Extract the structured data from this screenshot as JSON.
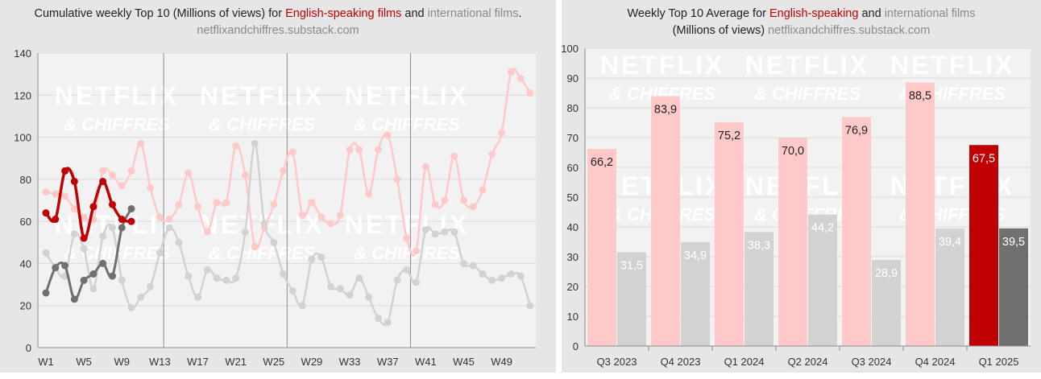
{
  "left": {
    "title_prefix": "Cumulative weekly Top 10 (Millions of views) for ",
    "title_red": "English-speaking films",
    "title_and": " and ",
    "title_grey": "international films",
    "title_end": ".",
    "source": "netflixandchiffres.substack.com"
  },
  "right": {
    "title_prefix": "Weekly Top 10 Average for ",
    "title_red": "English-speaking",
    "title_and": " and ",
    "title_grey": "international films",
    "title_line2": "(Millions of views)",
    "source": "netflixandchiffres.substack.com"
  },
  "watermark": {
    "line1": "NETFLIX",
    "line2": "& CHIFFRES"
  },
  "colors": {
    "english_current": "#c00000",
    "international_current": "#707070",
    "english_past": "#ffc9c9",
    "international_past": "#d2d2d2",
    "plot_bg": "#f2f2f2"
  },
  "chart_data": [
    {
      "type": "line",
      "x_tick_labels": [
        "W1",
        "W5",
        "W9",
        "W13",
        "W17",
        "W21",
        "W25",
        "W29",
        "W33",
        "W37",
        "W41",
        "W45",
        "W49"
      ],
      "ylim": [
        0,
        140
      ],
      "y_ticks": [
        0,
        20,
        40,
        60,
        80,
        100,
        120,
        140
      ],
      "grid": true,
      "series": [
        {
          "role": "english_past",
          "x": [
            1,
            2,
            3,
            4,
            5,
            6,
            7,
            8,
            9,
            10,
            11,
            12,
            13,
            14,
            15,
            16,
            17,
            18,
            19,
            20,
            21,
            22,
            23,
            24,
            25,
            26,
            27,
            28,
            29,
            30,
            31,
            32,
            33,
            34,
            35,
            36,
            37,
            38,
            39,
            40,
            41,
            42,
            43,
            44,
            45,
            46,
            47,
            48,
            49,
            50,
            51,
            52
          ],
          "values": [
            74,
            73,
            72,
            66,
            62,
            61,
            84,
            82,
            77,
            84,
            97,
            76,
            62,
            61,
            68,
            83,
            67,
            55,
            69,
            69,
            96,
            82,
            48,
            57,
            68,
            84,
            93,
            63,
            69,
            62,
            59,
            63,
            94,
            94,
            73,
            94,
            101,
            80,
            52,
            46,
            86,
            68,
            70,
            91,
            70,
            67,
            75,
            92,
            102,
            131,
            128,
            121
          ]
        },
        {
          "role": "international_past",
          "x": [
            1,
            2,
            3,
            4,
            5,
            6,
            7,
            8,
            9,
            10,
            11,
            12,
            13,
            14,
            15,
            16,
            17,
            18,
            19,
            20,
            21,
            22,
            23,
            24,
            25,
            26,
            27,
            28,
            29,
            30,
            31,
            32,
            33,
            34,
            35,
            36,
            37,
            38,
            39,
            40,
            41,
            42,
            43,
            44,
            45,
            46,
            47,
            48,
            49,
            50,
            51,
            52
          ],
          "values": [
            45,
            38,
            34,
            54,
            47,
            28,
            53,
            57,
            32,
            19,
            24,
            29,
            45,
            57,
            50,
            34,
            24,
            37,
            33,
            32,
            33,
            55,
            97,
            59,
            50,
            35,
            27,
            20,
            42,
            43,
            29,
            28,
            25,
            33,
            24,
            14,
            12,
            32,
            37,
            31,
            56,
            54,
            55,
            55,
            40,
            39,
            35,
            32,
            33,
            35,
            34,
            20
          ]
        },
        {
          "role": "international_current",
          "x": [
            1,
            2,
            3,
            4,
            5,
            6,
            7,
            8,
            9,
            10
          ],
          "values": [
            26,
            38,
            39,
            23,
            32,
            35,
            40,
            34,
            57,
            66
          ]
        },
        {
          "role": "english_current",
          "x": [
            1,
            2,
            3,
            4,
            5,
            6,
            7,
            8,
            9,
            10
          ],
          "values": [
            64,
            61,
            84,
            79,
            52,
            67,
            79,
            68,
            61,
            60
          ]
        }
      ]
    },
    {
      "type": "bar",
      "categories": [
        "Q3 2023",
        "Q4 2023",
        "Q1 2024",
        "Q2 2024",
        "Q3 2024",
        "Q4 2024",
        "Q1 2025"
      ],
      "ylim": [
        0,
        100
      ],
      "y_ticks": [
        0,
        10,
        20,
        30,
        40,
        50,
        60,
        70,
        80,
        90,
        100
      ],
      "grid": true,
      "series": [
        {
          "role": "english",
          "values": [
            66.2,
            83.9,
            75.2,
            70.0,
            76.9,
            88.5,
            67.5
          ],
          "labels": [
            "66,2",
            "83,9",
            "75,2",
            "70,0",
            "76,9",
            "88,5",
            "67,5"
          ]
        },
        {
          "role": "international",
          "values": [
            31.5,
            34.9,
            38.3,
            44.2,
            28.9,
            39.4,
            39.5
          ],
          "labels": [
            "31,5",
            "34,9",
            "38,3",
            "44,2",
            "28,9",
            "39,4",
            "39,5"
          ]
        }
      ]
    }
  ]
}
